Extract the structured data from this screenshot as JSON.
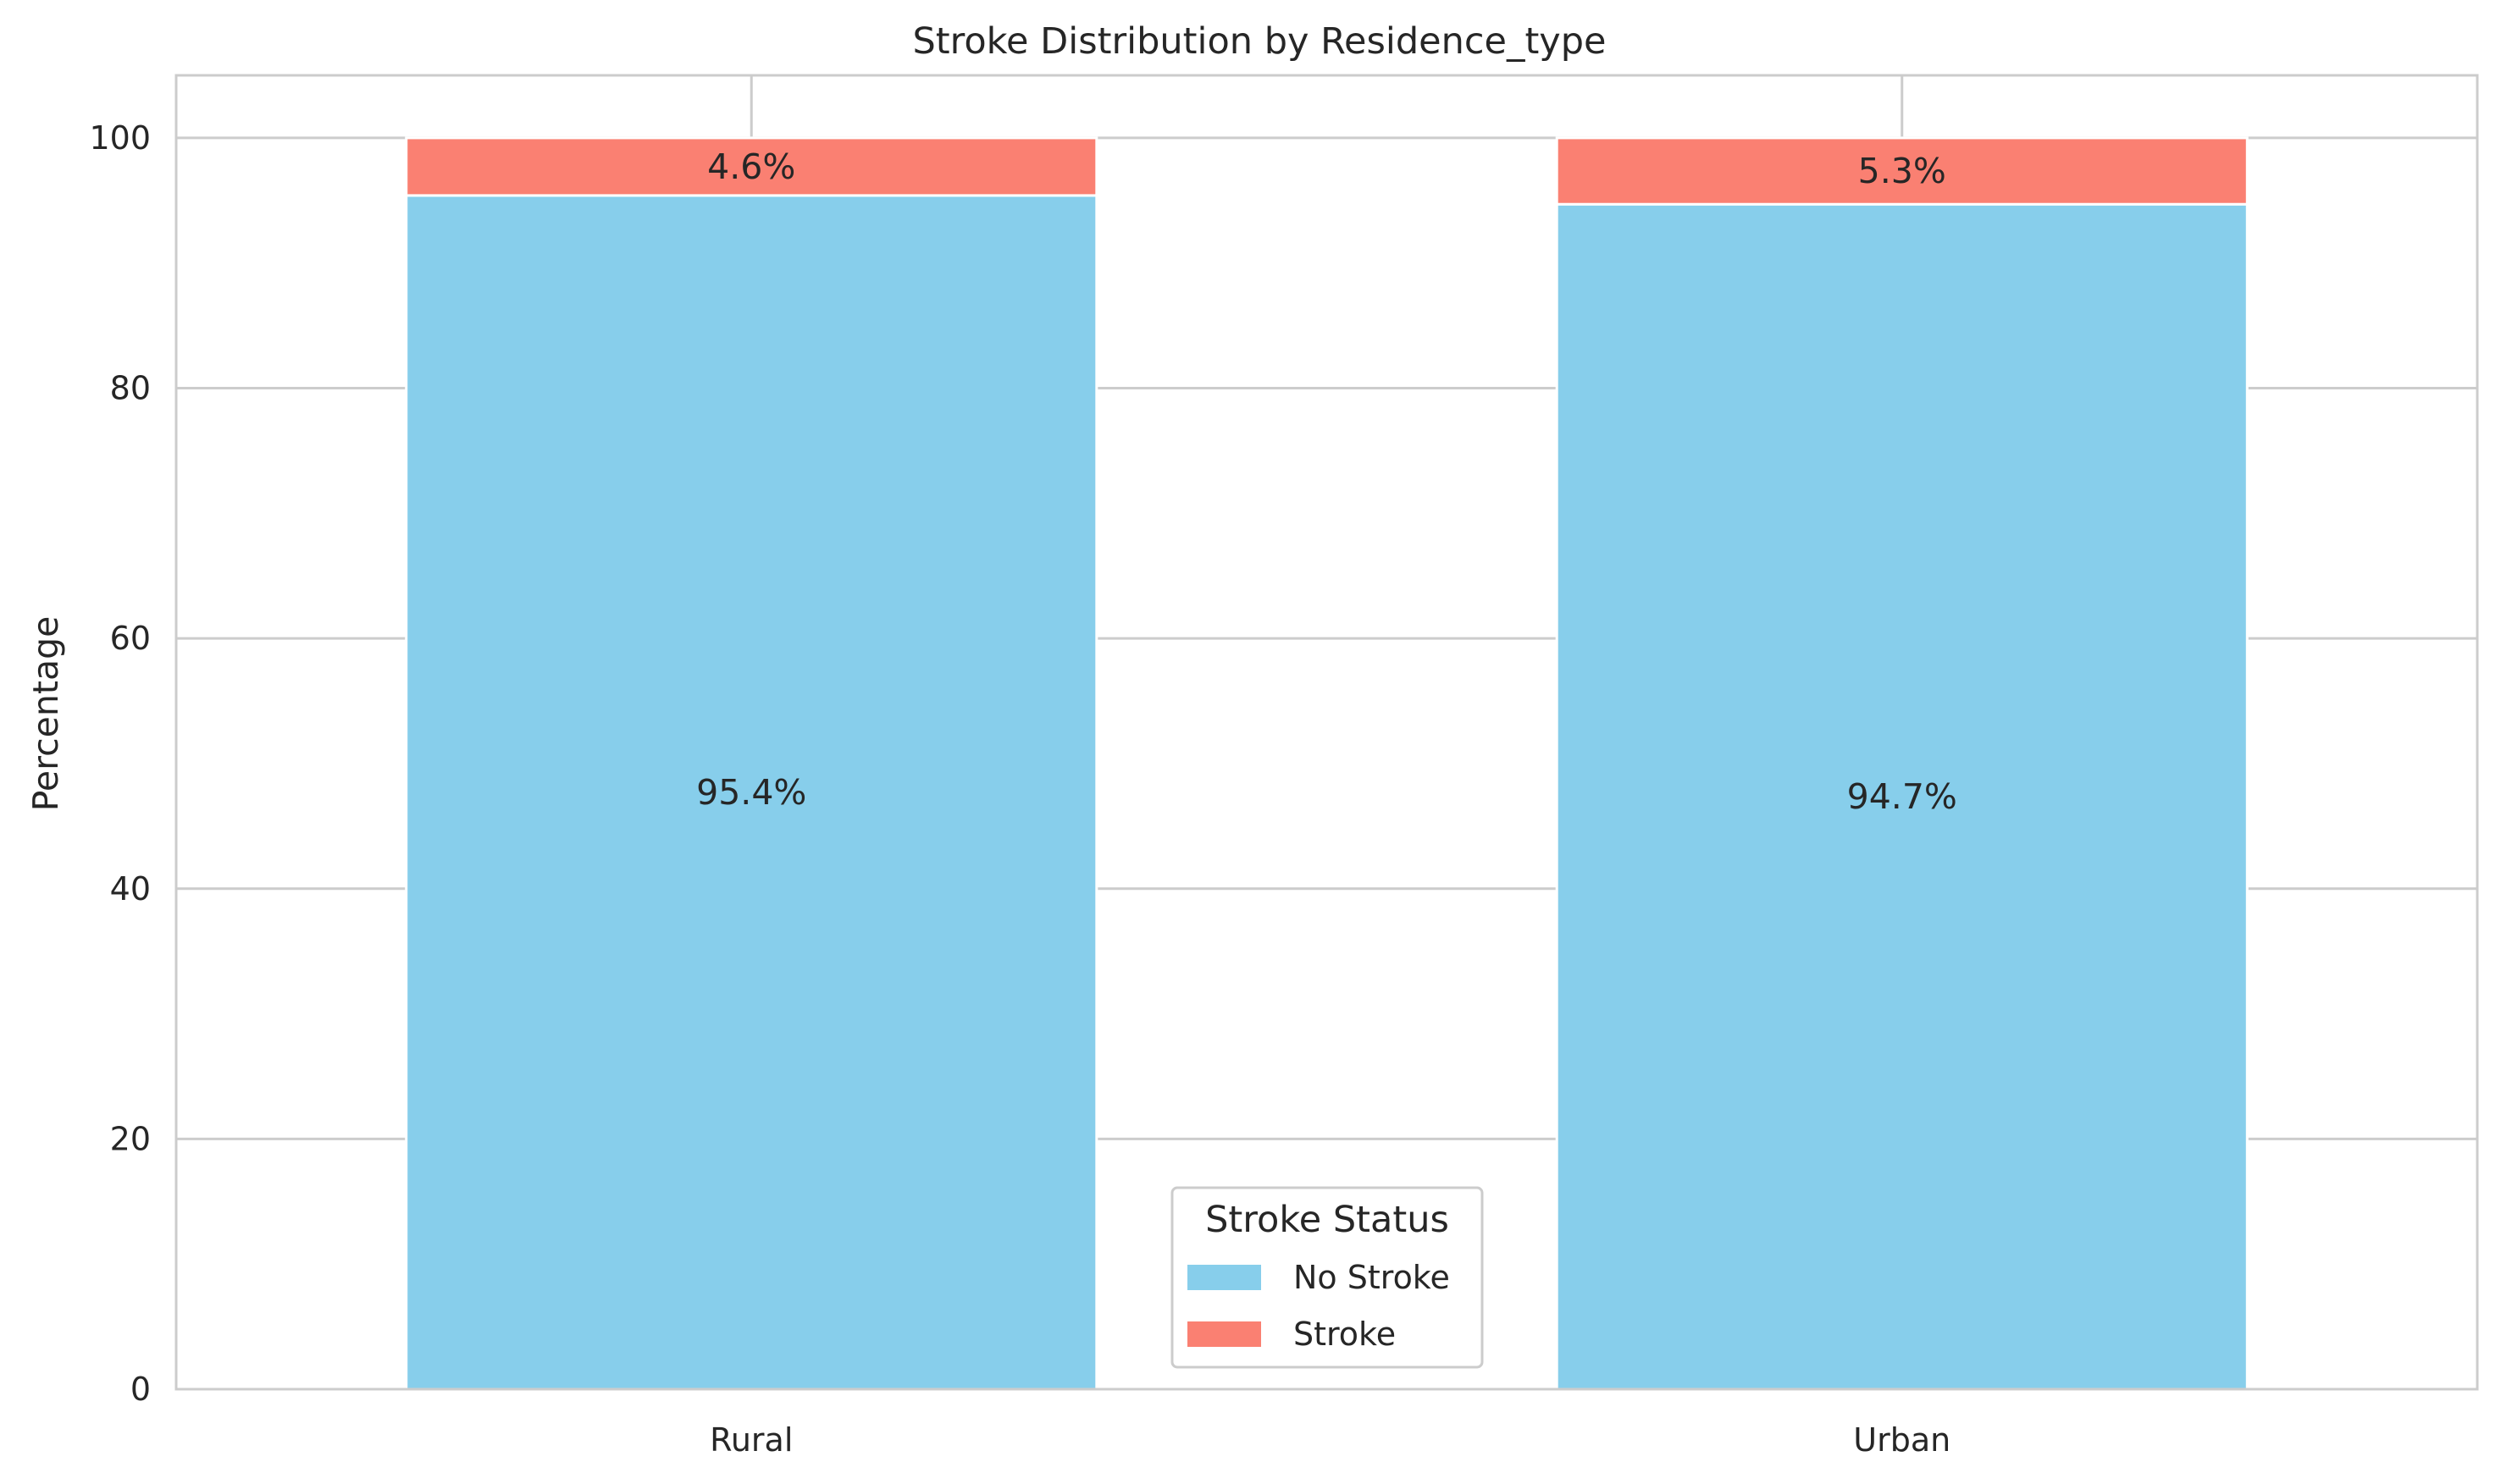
{
  "chart_data": {
    "type": "bar",
    "stacked": true,
    "title": "Stroke Distribution by Residence_type",
    "xlabel": "",
    "ylabel": "Percentage",
    "categories": [
      "Rural",
      "Urban"
    ],
    "ylim": [
      0,
      105
    ],
    "yticks": [
      0,
      20,
      40,
      60,
      80,
      100
    ],
    "grid": true,
    "series": [
      {
        "name": "No Stroke",
        "values": [
          95.4,
          94.7
        ],
        "labels": [
          "95.4%",
          "94.7%"
        ],
        "color": "#87ceeb"
      },
      {
        "name": "Stroke",
        "values": [
          4.6,
          5.3
        ],
        "labels": [
          "4.6%",
          "5.3%"
        ],
        "color": "#fa8072"
      }
    ],
    "legend": {
      "title": "Stroke Status",
      "placement": "lower-center"
    }
  }
}
